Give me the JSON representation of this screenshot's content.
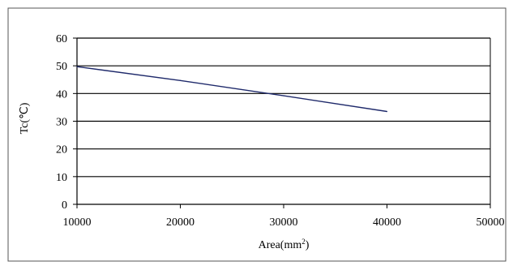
{
  "chart_data": {
    "type": "line",
    "title": "",
    "xlabel": "Area(mm",
    "xlabel_sup": "2",
    "xlabel_end": ")",
    "ylabel": "Tc(℃)",
    "xlim": [
      10000,
      50000
    ],
    "ylim": [
      0,
      60
    ],
    "x_ticks": [
      10000,
      20000,
      30000,
      40000,
      50000
    ],
    "y_ticks": [
      0,
      10,
      20,
      30,
      40,
      50,
      60
    ],
    "grid": "horizontal",
    "legend": "none",
    "series": [
      {
        "x": [
          10000,
          20000,
          30000,
          40000
        ],
        "values": [
          49.7,
          44.7,
          39.2,
          33.5
        ]
      }
    ],
    "colors": {
      "line": "#1f2a6b",
      "grid": "#000000",
      "frame": "#555555"
    }
  }
}
